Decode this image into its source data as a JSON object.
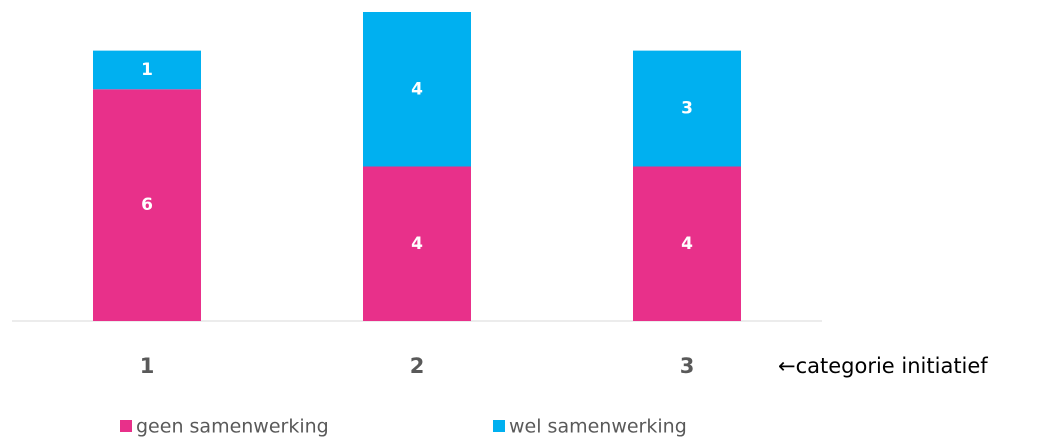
{
  "chart_data": {
    "type": "stacked_bar",
    "categories": [
      "1",
      "2",
      "3"
    ],
    "series": [
      {
        "name": "geen samenwerking",
        "color": "#e8308a",
        "values": [
          6,
          4,
          4
        ]
      },
      {
        "name": "wel samenwerking",
        "color": "#00b0f0",
        "values": [
          1,
          4,
          3
        ]
      }
    ],
    "x_label": "←categorie initiatief"
  }
}
